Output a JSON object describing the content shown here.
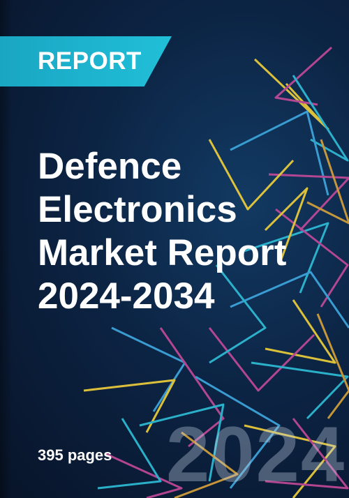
{
  "badge": {
    "label": "REPORT"
  },
  "title": {
    "lines": [
      "Defence",
      "Electronics",
      "Market Report",
      "2024-2034"
    ]
  },
  "meta": {
    "pages": "395 pages"
  },
  "year_watermark": "2024",
  "colors": {
    "background": "#0c2444",
    "badge": "#1fb6d0",
    "text": "#ffffff",
    "accents": [
      "#f2d13a",
      "#2fc0d9",
      "#c64a9a",
      "#3fa9e0",
      "#d9a33a"
    ]
  }
}
